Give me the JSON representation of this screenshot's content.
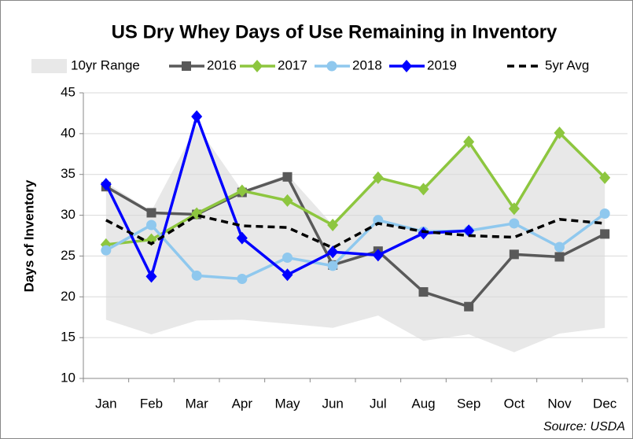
{
  "chart_data": {
    "type": "line",
    "title": "US Dry Whey Days of Use Remaining in Inventory",
    "y_label": "Days of Inventory",
    "source": "Source: USDA",
    "categories": [
      "Jan",
      "Feb",
      "Mar",
      "Apr",
      "May",
      "Jun",
      "Jul",
      "Aug",
      "Sep",
      "Oct",
      "Nov",
      "Dec"
    ],
    "ylim": [
      10,
      45
    ],
    "yticks": [
      10,
      15,
      20,
      25,
      30,
      35,
      40,
      45
    ],
    "grid": true,
    "legend": "top",
    "range": {
      "name": "10yr Range",
      "color": "#e8e8e8",
      "low": [
        17.2,
        15.4,
        17.1,
        17.2,
        16.7,
        16.2,
        17.7,
        14.6,
        15.4,
        13.2,
        15.5,
        16.2
      ],
      "high": [
        34,
        30.5,
        41,
        33,
        35,
        28.8,
        34.7,
        33.2,
        39,
        31,
        40.1,
        34.7
      ]
    },
    "series": [
      {
        "name": "2016",
        "color": "#595959",
        "marker": "square",
        "values": [
          33.5,
          30.3,
          30.1,
          32.8,
          34.7,
          23.9,
          25.6,
          20.6,
          18.8,
          25.2,
          24.9,
          27.7
        ]
      },
      {
        "name": "2017",
        "color": "#8dc63f",
        "marker": "diamond",
        "values": [
          26.4,
          27,
          30.2,
          33,
          31.8,
          28.8,
          34.6,
          33.2,
          39,
          30.8,
          40.1,
          34.6
        ]
      },
      {
        "name": "2018",
        "color": "#8fc8ee",
        "marker": "circle",
        "values": [
          25.7,
          28.8,
          22.6,
          22.2,
          24.8,
          23.8,
          29.4,
          28,
          28.1,
          29,
          26.1,
          30.2
        ]
      },
      {
        "name": "2019",
        "color": "#0000ff",
        "marker": "diamond",
        "values": [
          33.8,
          22.5,
          42.1,
          27.2,
          22.7,
          25.5,
          25.1,
          27.8,
          28.1,
          null,
          null,
          null
        ]
      },
      {
        "name": "5yr Avg",
        "color": "#000000",
        "marker": "none",
        "dash": true,
        "values": [
          29.4,
          26.5,
          30,
          28.7,
          28.5,
          26,
          29,
          28,
          27.5,
          27.3,
          29.5,
          29
        ]
      }
    ]
  }
}
